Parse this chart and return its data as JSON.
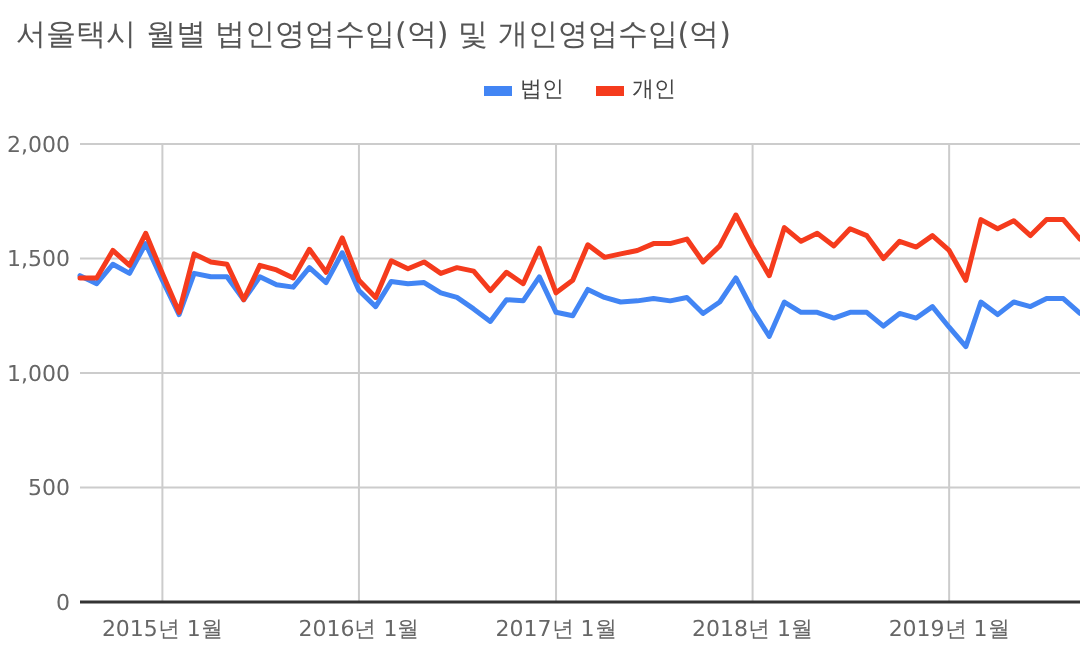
{
  "chart_data": {
    "type": "line",
    "title": "서울택시 월별 법인영업수입(억) 및 개인영업수입(억)",
    "x": [
      "2014-08",
      "2014-09",
      "2014-10",
      "2014-11",
      "2014-12",
      "2015-01",
      "2015-02",
      "2015-03",
      "2015-04",
      "2015-05",
      "2015-06",
      "2015-07",
      "2015-08",
      "2015-09",
      "2015-10",
      "2015-11",
      "2015-12",
      "2016-01",
      "2016-02",
      "2016-03",
      "2016-04",
      "2016-05",
      "2016-06",
      "2016-07",
      "2016-08",
      "2016-09",
      "2016-10",
      "2016-11",
      "2016-12",
      "2017-01",
      "2017-02",
      "2017-03",
      "2017-04",
      "2017-05",
      "2017-06",
      "2017-07",
      "2017-08",
      "2017-09",
      "2017-10",
      "2017-11",
      "2017-12",
      "2018-01",
      "2018-02",
      "2018-03",
      "2018-04",
      "2018-05",
      "2018-06",
      "2018-07",
      "2018-08",
      "2018-09",
      "2018-10",
      "2018-11",
      "2018-12",
      "2019-01",
      "2019-02",
      "2019-03",
      "2019-04",
      "2019-05",
      "2019-06",
      "2019-07",
      "2019-08",
      "2019-09"
    ],
    "series": [
      {
        "name": "법인",
        "color": "#4285f4",
        "values": [
          1425,
          1390,
          1475,
          1435,
          1565,
          1405,
          1255,
          1435,
          1420,
          1420,
          1320,
          1420,
          1385,
          1375,
          1460,
          1395,
          1525,
          1360,
          1290,
          1400,
          1390,
          1395,
          1350,
          1330,
          1280,
          1225,
          1320,
          1315,
          1420,
          1265,
          1250,
          1365,
          1330,
          1310,
          1315,
          1325,
          1315,
          1330,
          1260,
          1310,
          1415,
          1275,
          1160,
          1310,
          1265,
          1265,
          1240,
          1265,
          1265,
          1205,
          1260,
          1240,
          1290,
          1200,
          1115,
          1310,
          1255,
          1310,
          1290,
          1325,
          1325,
          1260
        ]
      },
      {
        "name": "개인",
        "color": "#f53b1d",
        "values": [
          1415,
          1415,
          1535,
          1470,
          1610,
          1435,
          1265,
          1520,
          1485,
          1475,
          1320,
          1470,
          1450,
          1415,
          1540,
          1440,
          1590,
          1405,
          1330,
          1490,
          1455,
          1485,
          1435,
          1460,
          1445,
          1360,
          1440,
          1390,
          1545,
          1350,
          1405,
          1560,
          1505,
          1520,
          1535,
          1565,
          1565,
          1585,
          1485,
          1555,
          1690,
          1550,
          1425,
          1635,
          1575,
          1610,
          1555,
          1630,
          1600,
          1500,
          1575,
          1550,
          1600,
          1535,
          1405,
          1670,
          1630,
          1665,
          1600,
          1670,
          1670,
          1585
        ]
      }
    ],
    "xlim": [
      "2014-08",
      "2019-09"
    ],
    "xticks": [
      {
        "value": "2015-01",
        "label": "2015년 1월"
      },
      {
        "value": "2016-01",
        "label": "2016년 1월"
      },
      {
        "value": "2017-01",
        "label": "2017년 1월"
      },
      {
        "value": "2018-01",
        "label": "2018년 1월"
      },
      {
        "value": "2019-01",
        "label": "2019년 1월"
      }
    ],
    "ylim": [
      0,
      2000
    ],
    "yticks": [
      0,
      500,
      {
        "value": 1000,
        "label": "1,000"
      },
      {
        "value": 1500,
        "label": "1,500"
      },
      {
        "value": 2000,
        "label": "2,000"
      }
    ],
    "grid": true,
    "legend": "top",
    "marker": "none",
    "line_style": "solid"
  }
}
